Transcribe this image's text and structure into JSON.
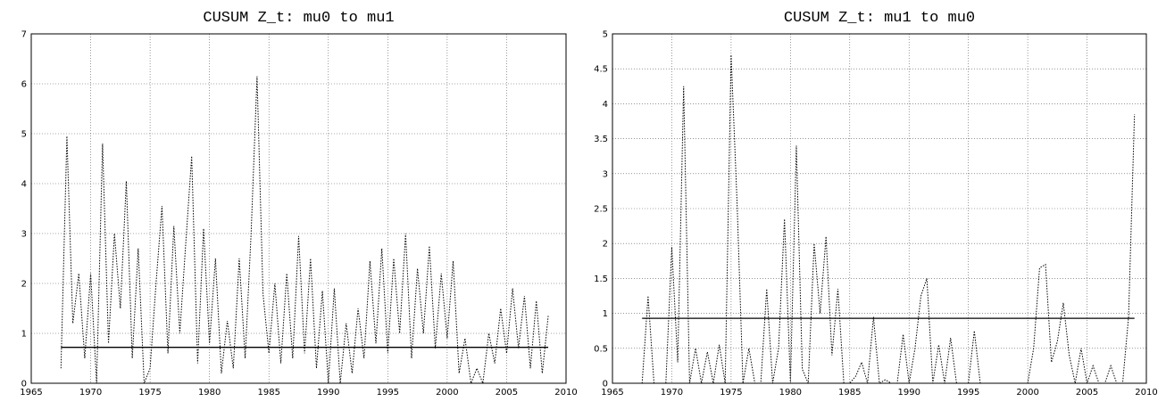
{
  "chart_data": [
    {
      "type": "line",
      "title": "CUSUM Z_t: mu0 to mu1",
      "x": [
        1967.5,
        1968,
        1968.5,
        1969,
        1969.5,
        1970,
        1970.5,
        1971,
        1971.5,
        1972,
        1972.5,
        1973,
        1973.5,
        1974,
        1974.5,
        1975,
        1975.5,
        1976,
        1976.5,
        1977,
        1977.5,
        1978,
        1978.5,
        1979,
        1979.5,
        1980,
        1980.5,
        1981,
        1981.5,
        1982,
        1982.5,
        1983,
        1983.5,
        1984,
        1984.5,
        1985,
        1985.5,
        1986,
        1986.5,
        1987,
        1987.5,
        1988,
        1988.5,
        1989,
        1989.5,
        1990,
        1990.5,
        1991,
        1991.5,
        1992,
        1992.5,
        1993,
        1993.5,
        1994,
        1994.5,
        1995,
        1995.5,
        1996,
        1996.5,
        1997,
        1997.5,
        1998,
        1998.5,
        1999,
        1999.5,
        2000,
        2000.5,
        2001,
        2001.5,
        2002,
        2002.5,
        2003,
        2003.5,
        2004,
        2004.5,
        2005,
        2005.5,
        2006,
        2006.5,
        2007,
        2007.5,
        2008,
        2008.5
      ],
      "series": [
        {
          "color": "#000000",
          "dash": "dotted",
          "values": [
            0.3,
            4.95,
            1.2,
            2.2,
            0.5,
            2.2,
            0,
            4.8,
            0.8,
            3.0,
            1.5,
            4.05,
            0.5,
            2.7,
            0,
            0.3,
            2.0,
            3.55,
            0.6,
            3.15,
            1.0,
            2.8,
            4.55,
            0.4,
            3.1,
            0.8,
            2.5,
            0.2,
            1.25,
            0.3,
            2.5,
            0.5,
            3.0,
            6.15,
            1.8,
            0.6,
            2.0,
            0.4,
            2.2,
            0.5,
            2.95,
            0.6,
            2.5,
            0.3,
            1.85,
            0,
            1.9,
            0,
            1.2,
            0.2,
            1.5,
            0.5,
            2.45,
            0.8,
            2.7,
            0.6,
            2.5,
            1.0,
            3.0,
            0.5,
            2.3,
            1.0,
            2.75,
            0.7,
            2.2,
            0.9,
            2.45,
            0.2,
            0.9,
            0,
            0.3,
            0,
            1.0,
            0.4,
            1.5,
            0.6,
            1.9,
            0.7,
            1.75,
            0.3,
            1.65,
            0.2,
            1.35
          ]
        },
        {
          "color": "#000000",
          "dash": "solid",
          "x": [
            1967.5,
            2008.5
          ],
          "values": [
            0.72,
            0.72
          ]
        }
      ],
      "xlim": [
        1965,
        2010
      ],
      "xticks": [
        1965,
        1970,
        1975,
        1980,
        1985,
        1990,
        1995,
        2000,
        2005,
        2010
      ],
      "ylim": [
        0,
        7
      ],
      "yticks": [
        0,
        1,
        2,
        3,
        4,
        5,
        6,
        7
      ],
      "grid": true
    },
    {
      "type": "line",
      "title": "CUSUM Z_t: mu1 to mu0",
      "x": [
        1967.5,
        1968,
        1968.5,
        1969,
        1969.5,
        1970,
        1970.5,
        1971,
        1971.5,
        1972,
        1972.5,
        1973,
        1973.5,
        1974,
        1974.5,
        1975,
        1975.5,
        1976,
        1976.5,
        1977,
        1977.5,
        1978,
        1978.5,
        1979,
        1979.5,
        1980,
        1980.5,
        1981,
        1981.5,
        1982,
        1982.5,
        1983,
        1983.5,
        1984,
        1984.5,
        1985,
        1985.5,
        1986,
        1986.5,
        1987,
        1987.5,
        1988,
        1988.5,
        1989,
        1989.5,
        1990,
        1990.5,
        1991,
        1991.5,
        1992,
        1992.5,
        1993,
        1993.5,
        1994,
        1994.5,
        1995,
        1995.5,
        1996,
        1996.5,
        1997,
        1997.5,
        1998,
        1998.5,
        1999,
        1999.5,
        2000,
        2000.5,
        2001,
        2001.5,
        2002,
        2002.5,
        2003,
        2003.5,
        2004,
        2004.5,
        2005,
        2005.5,
        2006,
        2006.5,
        2007,
        2007.5,
        2008,
        2008.5,
        2009
      ],
      "series": [
        {
          "color": "#000000",
          "dash": "dotted",
          "values": [
            0,
            1.25,
            0,
            0,
            0,
            1.95,
            0.3,
            4.25,
            0,
            0.5,
            0,
            0.45,
            0,
            0.55,
            0,
            4.7,
            2.6,
            0,
            0.5,
            0,
            0,
            1.35,
            0,
            0.5,
            2.35,
            0,
            3.4,
            0.2,
            0,
            2.0,
            1.0,
            2.1,
            0.4,
            1.35,
            0,
            0,
            0.1,
            0.3,
            0,
            0.95,
            0,
            0.05,
            0,
            0,
            0.7,
            0,
            0.5,
            1.25,
            1.5,
            0,
            0.55,
            0,
            0.65,
            0,
            0,
            0,
            0.75,
            0,
            0,
            0,
            0,
            0,
            0,
            0,
            0,
            0,
            0.5,
            1.65,
            1.7,
            0.3,
            0.6,
            1.15,
            0.4,
            0,
            0.5,
            0,
            0.25,
            0,
            0,
            0.25,
            0,
            0,
            0.95,
            3.85
          ]
        },
        {
          "color": "#000000",
          "dash": "solid",
          "x": [
            1967.5,
            2009
          ],
          "values": [
            0.93,
            0.93
          ]
        }
      ],
      "xlim": [
        1965,
        2010
      ],
      "xticks": [
        1965,
        1970,
        1975,
        1980,
        1985,
        1990,
        1995,
        2000,
        2005,
        2010
      ],
      "ylim": [
        0,
        5
      ],
      "yticks": [
        0,
        0.5,
        1,
        1.5,
        2,
        2.5,
        3,
        3.5,
        4,
        4.5,
        5
      ],
      "grid": true
    }
  ]
}
